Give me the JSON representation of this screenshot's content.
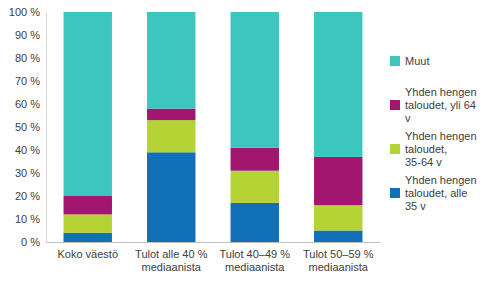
{
  "chart_data": {
    "type": "bar",
    "stacked": true,
    "legend": "right",
    "grid": false,
    "categories": [
      "Koko väestö",
      "Tulot alle 40 % mediaanista",
      "Tulot 40–49 % mediaanista",
      "Tulot 50–59 % mediaanista"
    ],
    "series": [
      {
        "name": "Yhden hengen taloudet, alle 35 v",
        "color": "#1170B8",
        "values": [
          4,
          39,
          17,
          5
        ]
      },
      {
        "name": "Yhden hengen taloudet, 35-64 v",
        "color": "#B5D334",
        "values": [
          8,
          14,
          14,
          11
        ]
      },
      {
        "name": "Yhden hengen taloudet, yli 64 v",
        "color": "#A2166F",
        "values": [
          8,
          5,
          10,
          21
        ]
      },
      {
        "name": "Muut",
        "color": "#3CC6BE",
        "values": [
          80,
          42,
          59,
          63
        ]
      }
    ],
    "ylim": [
      0,
      100
    ],
    "yticks": [
      {
        "value": 0,
        "label": "0 %"
      },
      {
        "value": 10,
        "label": "10 %"
      },
      {
        "value": 20,
        "label": "20 %"
      },
      {
        "value": 30,
        "label": "30 %"
      },
      {
        "value": 40,
        "label": "40 %"
      },
      {
        "value": 50,
        "label": "50 %"
      },
      {
        "value": 60,
        "label": "60 %"
      },
      {
        "value": 70,
        "label": "70 %"
      },
      {
        "value": 80,
        "label": "80 %"
      },
      {
        "value": 90,
        "label": "90 %"
      },
      {
        "value": 100,
        "label": "100 %"
      }
    ]
  }
}
